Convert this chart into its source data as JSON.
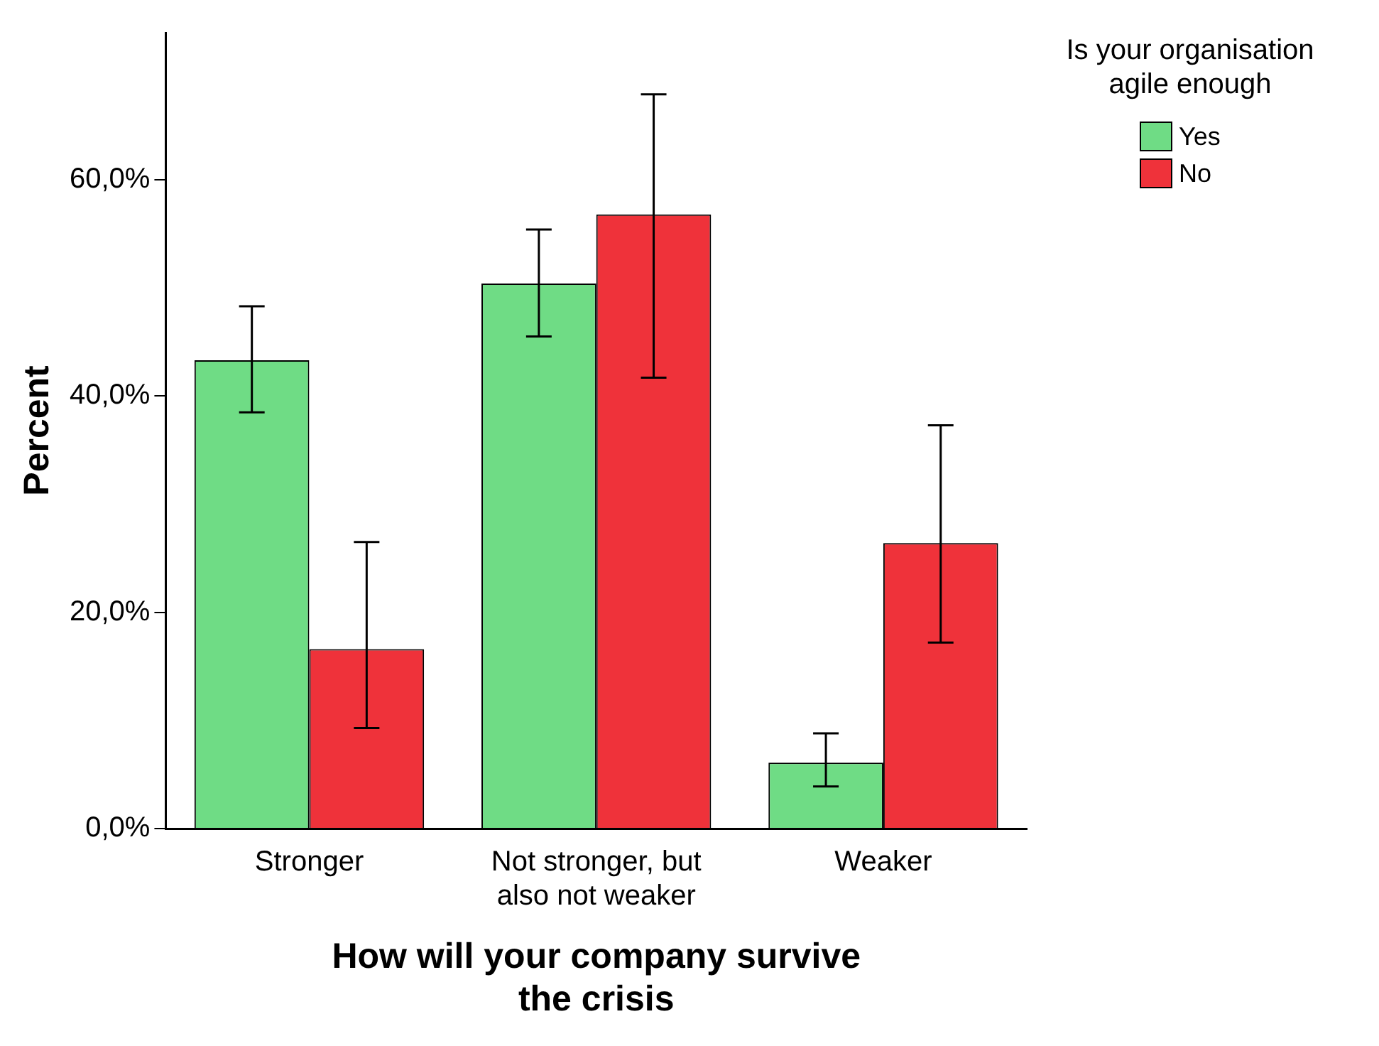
{
  "chart_data": {
    "type": "bar",
    "xlabel": "How will your company survive the crisis",
    "ylabel": "Percent",
    "legend_title": "Is your organisation agile enough",
    "legend": "top right",
    "grid": false,
    "categories": [
      "Stronger",
      "Not stronger, but also not weaker",
      "Weaker"
    ],
    "ylim": [
      0,
      73.6
    ],
    "yticks": [
      {
        "value": 0,
        "label": "0,0%"
      },
      {
        "value": 20,
        "label": "20,0%"
      },
      {
        "value": 40,
        "label": "40,0%"
      },
      {
        "value": 60,
        "label": "60,0%"
      }
    ],
    "series": [
      {
        "name": "Yes",
        "color": "#6fdc85",
        "values": [
          43.3,
          50.4,
          6.1
        ],
        "errors": [
          [
            38.5,
            48.3
          ],
          [
            45.5,
            55.4
          ],
          [
            3.9,
            8.8
          ]
        ]
      },
      {
        "name": "No",
        "color": "#ef323a",
        "values": [
          16.6,
          56.8,
          26.4
        ],
        "errors": [
          [
            9.3,
            26.5
          ],
          [
            41.7,
            67.9
          ],
          [
            17.2,
            37.3
          ]
        ]
      }
    ]
  }
}
